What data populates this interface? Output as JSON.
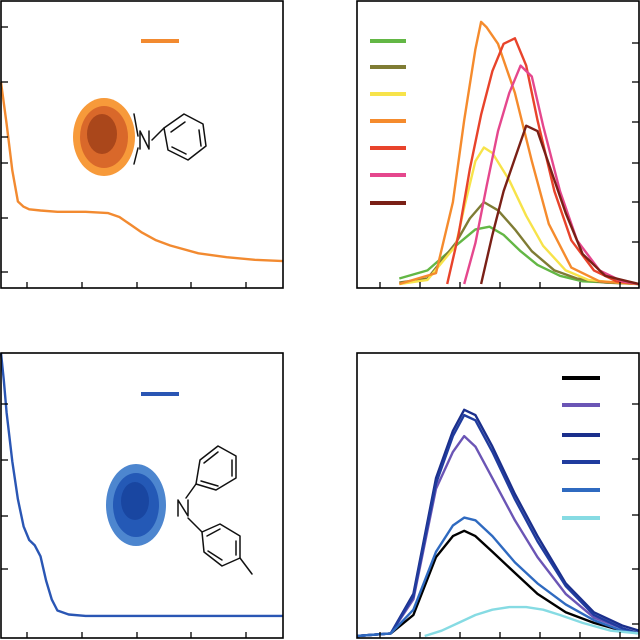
{
  "figure": {
    "background": "#ffffff"
  },
  "chart_data": [
    {
      "panel": "top-left",
      "type": "line",
      "title": "",
      "xlabel": "",
      "ylabel": "",
      "xlim": [
        0,
        100
      ],
      "ylim": [
        0,
        100
      ],
      "legend": {
        "placement": "top-center",
        "color": "#f28a30"
      },
      "decoration": {
        "kind": "quantum-dot-with-phenylamine",
        "dot_colors": [
          "#f79a3a",
          "#e0742a",
          "#a8461c",
          "#7a2a10"
        ]
      },
      "series": [
        {
          "color": "#f28a30",
          "x": [
            0,
            2,
            4,
            6,
            8,
            10,
            14,
            20,
            30,
            38,
            42,
            46,
            50,
            55,
            60,
            70,
            80,
            90,
            100
          ],
          "y": [
            74,
            58,
            40,
            28,
            26,
            25,
            24.5,
            24,
            24,
            23.5,
            22,
            19,
            16,
            13,
            11,
            8,
            6.5,
            5.5,
            5
          ]
        }
      ]
    },
    {
      "panel": "top-right",
      "type": "line",
      "title": "",
      "xlabel": "",
      "ylabel": "",
      "xlim": [
        0,
        100
      ],
      "ylim": [
        0,
        100
      ],
      "legend": {
        "placement": "top-left"
      },
      "series": [
        {
          "color": "#63b745",
          "x": [
            15,
            25,
            35,
            42,
            47,
            52,
            58,
            64,
            72,
            80,
            90,
            100
          ],
          "y": [
            2,
            5,
            14,
            20,
            21,
            18,
            12,
            7,
            3,
            1,
            0.5,
            0
          ]
        },
        {
          "color": "#7f7c34",
          "x": [
            15,
            25,
            35,
            40,
            45,
            50,
            56,
            62,
            70,
            78,
            88,
            100
          ],
          "y": [
            0.5,
            2,
            15,
            24,
            30,
            27,
            20,
            12,
            5,
            2,
            0.5,
            0
          ]
        },
        {
          "color": "#f7e34a",
          "x": [
            15,
            25,
            35,
            38,
            42,
            45,
            48,
            54,
            60,
            66,
            74,
            82,
            92,
            100
          ],
          "y": [
            0,
            1.5,
            14,
            28,
            45,
            50,
            48,
            38,
            25,
            14,
            5,
            1.5,
            0.5,
            0
          ]
        },
        {
          "color": "#f58b2d",
          "x": [
            15,
            28,
            34,
            38,
            42,
            44,
            46,
            50,
            56,
            62,
            68,
            76,
            86,
            100
          ],
          "y": [
            0,
            4,
            30,
            60,
            86,
            96,
            94,
            88,
            70,
            45,
            22,
            6,
            1,
            0
          ]
        },
        {
          "color": "#e8432b",
          "x": [
            32,
            36,
            40,
            44,
            48,
            52,
            56,
            60,
            64,
            70,
            76,
            84,
            92,
            100
          ],
          "y": [
            0,
            18,
            42,
            62,
            78,
            88,
            90,
            80,
            60,
            34,
            16,
            5,
            1,
            0
          ]
        },
        {
          "color": "#e5478d",
          "x": [
            38,
            42,
            46,
            50,
            54,
            58,
            62,
            66,
            72,
            78,
            86,
            94,
            100
          ],
          "y": [
            0,
            15,
            36,
            56,
            70,
            80,
            76,
            58,
            34,
            16,
            5,
            1,
            0
          ]
        },
        {
          "color": "#7a2016",
          "x": [
            44,
            48,
            52,
            56,
            60,
            64,
            68,
            74,
            80,
            88,
            96,
            100
          ],
          "y": [
            0,
            18,
            34,
            46,
            58,
            56,
            44,
            26,
            11,
            3,
            1,
            0
          ]
        }
      ]
    },
    {
      "panel": "bottom-left",
      "type": "line",
      "title": "",
      "xlabel": "",
      "ylabel": "",
      "xlim": [
        0,
        100
      ],
      "ylim": [
        0,
        100
      ],
      "legend": {
        "placement": "top-center",
        "color": "#2a56b4"
      },
      "decoration": {
        "kind": "quantum-dot-with-triarylamine",
        "dot_colors": [
          "#4d86cf",
          "#2a63bd",
          "#1b49a4",
          "#143b90"
        ]
      },
      "series": [
        {
          "color": "#2a56b4",
          "x": [
            0,
            1,
            2,
            4,
            6,
            8,
            10,
            12,
            14,
            16,
            18,
            20,
            24,
            30,
            40,
            60,
            80,
            100
          ],
          "y": [
            100,
            90,
            78,
            60,
            46,
            36,
            31,
            29,
            25,
            16,
            9,
            5,
            3.5,
            3,
            3,
            3,
            3,
            3
          ]
        }
      ]
    },
    {
      "panel": "bottom-right",
      "type": "line",
      "title": "",
      "xlabel": "",
      "ylabel": "",
      "xlim": [
        0,
        100
      ],
      "ylim": [
        0,
        100
      ],
      "legend": {
        "placement": "top-right"
      },
      "series": [
        {
          "color": "#000000",
          "x": [
            0,
            12,
            20,
            28,
            34,
            38,
            42,
            48,
            56,
            64,
            74,
            84,
            94,
            100
          ],
          "y": [
            0,
            1,
            8,
            30,
            38,
            40,
            38,
            32,
            24,
            16,
            9,
            5,
            2,
            1
          ]
        },
        {
          "color": "#6b55b5",
          "x": [
            0,
            12,
            20,
            28,
            34,
            38,
            42,
            48,
            56,
            64,
            74,
            84,
            94,
            100
          ],
          "y": [
            0,
            1,
            14,
            56,
            70,
            76,
            72,
            60,
            44,
            30,
            16,
            7,
            3,
            1
          ]
        },
        {
          "color": "#1b2f8c",
          "x": [
            0,
            12,
            20,
            28,
            34,
            38,
            42,
            48,
            56,
            64,
            74,
            84,
            94,
            100
          ],
          "y": [
            0,
            1,
            16,
            60,
            78,
            86,
            84,
            72,
            54,
            38,
            20,
            9,
            4,
            2
          ]
        },
        {
          "color": "#203c9e",
          "x": [
            0,
            12,
            20,
            28,
            34,
            38,
            42,
            48,
            56,
            64,
            74,
            84,
            94,
            100
          ],
          "y": [
            0,
            1,
            15,
            58,
            76,
            84,
            82,
            70,
            52,
            36,
            19,
            8,
            3,
            1
          ]
        },
        {
          "color": "#2f6ac0",
          "x": [
            0,
            12,
            20,
            28,
            34,
            38,
            42,
            48,
            56,
            64,
            74,
            84,
            94,
            100
          ],
          "y": [
            0,
            1,
            10,
            32,
            42,
            45,
            44,
            38,
            28,
            20,
            12,
            6,
            2,
            1
          ]
        },
        {
          "color": "#86dbe3",
          "x": [
            24,
            30,
            36,
            42,
            48,
            54,
            60,
            66,
            72,
            80,
            90,
            100
          ],
          "y": [
            0,
            2,
            5,
            8,
            10,
            11,
            11,
            10,
            8,
            5,
            2,
            1
          ]
        }
      ]
    }
  ]
}
